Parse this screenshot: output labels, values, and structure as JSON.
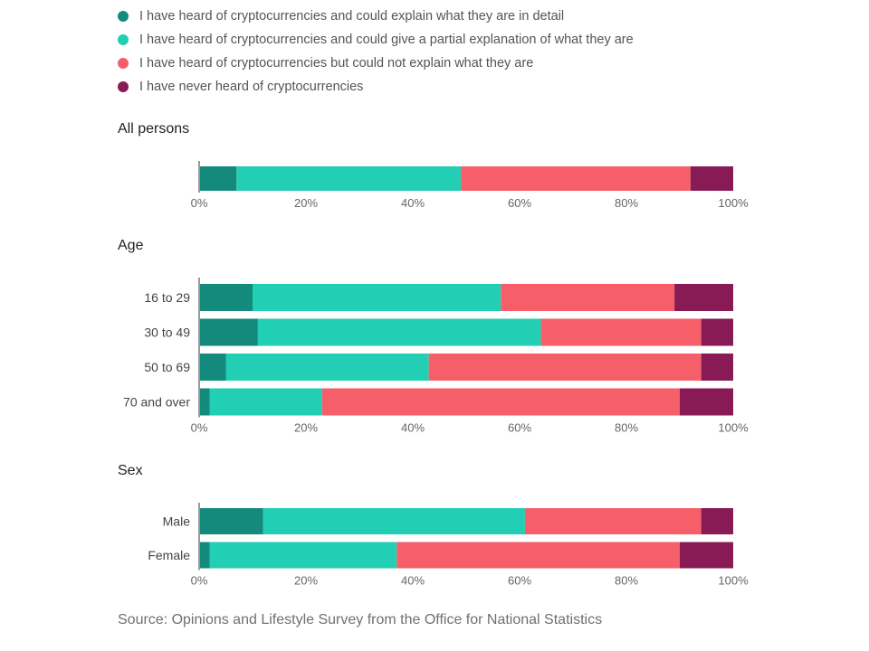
{
  "colors": [
    "#138a7c",
    "#22cfb4",
    "#f65f6a",
    "#881a56"
  ],
  "legend": [
    "I have heard of cryptocurrencies and could explain what they are in detail",
    "I have heard of cryptocurrencies and could give a partial explanation of what they are",
    "I have heard of cryptocurrencies but could not explain what they are",
    "I have never heard of cryptocurrencies"
  ],
  "source": "Source: Opinions and Lifestyle Survey from the Office for National Statistics",
  "chart_data": [
    {
      "type": "bar",
      "orientation": "horizontal",
      "stacked": true,
      "title": "All persons",
      "categories": [
        ""
      ],
      "xlim": [
        0,
        100
      ],
      "x_ticks": [
        "0%",
        "20%",
        "40%",
        "60%",
        "80%",
        "100%"
      ],
      "series": [
        {
          "name": "I have heard of cryptocurrencies and could explain what they are in detail",
          "values": [
            7
          ]
        },
        {
          "name": "I have heard of cryptocurrencies and could give a partial explanation of what they are",
          "values": [
            42
          ]
        },
        {
          "name": "I have heard of cryptocurrencies but could not explain what they are",
          "values": [
            43
          ]
        },
        {
          "name": "I have never heard of cryptocurrencies",
          "values": [
            8
          ]
        }
      ]
    },
    {
      "type": "bar",
      "orientation": "horizontal",
      "stacked": true,
      "title": "Age",
      "categories": [
        "16 to 29",
        "30 to 49",
        "50 to 69",
        "70 and over"
      ],
      "xlim": [
        0,
        100
      ],
      "x_ticks": [
        "0%",
        "20%",
        "40%",
        "60%",
        "80%",
        "100%"
      ],
      "series": [
        {
          "name": "I have heard of cryptocurrencies and could explain what they are in detail",
          "values": [
            10,
            11,
            5,
            2
          ]
        },
        {
          "name": "I have heard of cryptocurrencies and could give a partial explanation of what they are",
          "values": [
            46.5,
            53,
            38,
            21
          ]
        },
        {
          "name": "I have heard of cryptocurrencies but could not explain what they are",
          "values": [
            32.5,
            30,
            51,
            67
          ]
        },
        {
          "name": "I have never heard of cryptocurrencies",
          "values": [
            11,
            6,
            6,
            10
          ]
        }
      ]
    },
    {
      "type": "bar",
      "orientation": "horizontal",
      "stacked": true,
      "title": "Sex",
      "categories": [
        "Male",
        "Female"
      ],
      "xlim": [
        0,
        100
      ],
      "x_ticks": [
        "0%",
        "20%",
        "40%",
        "60%",
        "80%",
        "100%"
      ],
      "series": [
        {
          "name": "I have heard of cryptocurrencies and could explain what they are in detail",
          "values": [
            12,
            2
          ]
        },
        {
          "name": "I have heard of cryptocurrencies and could give a partial explanation of what they are",
          "values": [
            49,
            35
          ]
        },
        {
          "name": "I have heard of cryptocurrencies but could not explain what they are",
          "values": [
            33,
            53
          ]
        },
        {
          "name": "I have never heard of cryptocurrencies",
          "values": [
            6,
            10
          ]
        }
      ]
    }
  ]
}
